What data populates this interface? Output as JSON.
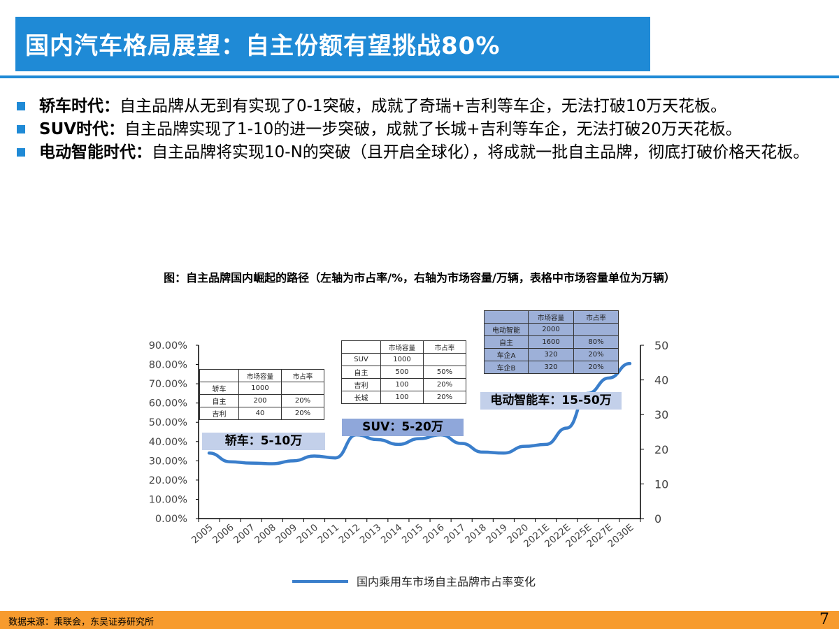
{
  "page": {
    "title": "国内汽车格局展望：自主份额有望挑战80%",
    "bullets": [
      {
        "lead": "轿车时代：",
        "text": "自主品牌从无到有实现了0-1突破，成就了奇瑞+吉利等车企，无法打破10万天花板。"
      },
      {
        "lead": "SUV时代：",
        "text": "自主品牌实现了1-10的进一步突破，成就了长城+吉利等车企，无法打破20万天花板。"
      },
      {
        "lead": "电动智能时代：",
        "text": "自主品牌将实现10-N的突破（且开启全球化），将成就一批自主品牌，彻底打破价格天花板。"
      }
    ],
    "figure_caption": "图：自主品牌国内崛起的路径（左轴为市占率/%，右轴为市场容量/万辆，表格中市场容量单位为万辆）",
    "footer_source": "数据来源：乘联会，东吴证券研究所",
    "page_number": "7",
    "colors": {
      "accent": "#1f8ad6",
      "line": "#3a7ecb",
      "footer": "#f79b2e"
    }
  },
  "tables": [
    {
      "header": [
        "",
        "市场容量",
        "市占率"
      ],
      "rows": [
        [
          "轿车",
          "1000",
          ""
        ],
        [
          "自主",
          "200",
          "20%"
        ],
        [
          "吉利",
          "40",
          "20%"
        ]
      ]
    },
    {
      "header": [
        "",
        "市场容量",
        "市占率"
      ],
      "rows": [
        [
          "SUV",
          "1000",
          ""
        ],
        [
          "自主",
          "500",
          "50%"
        ],
        [
          "吉利",
          "100",
          "20%"
        ],
        [
          "长城",
          "100",
          "20%"
        ]
      ]
    },
    {
      "header": [
        "",
        "市场容量",
        "市占率"
      ],
      "rows": [
        [
          "电动智能",
          "2000",
          ""
        ],
        [
          "自主",
          "1600",
          "80%"
        ],
        [
          "车企A",
          "320",
          "20%"
        ],
        [
          "车企B",
          "320",
          "20%"
        ]
      ]
    }
  ],
  "era_tags": [
    "轿车：5-10万",
    "SUV：5-20万",
    "电动智能车：15-50万"
  ],
  "chart_data": {
    "type": "line",
    "categories": [
      "2005",
      "2006",
      "2007",
      "2008",
      "2009",
      "2010",
      "2011",
      "2012",
      "2013",
      "2014",
      "2015",
      "2016",
      "2017",
      "2018",
      "2019",
      "2020",
      "2021E",
      "2022E",
      "2025E",
      "2027E",
      "2030E"
    ],
    "series": [
      {
        "name": "国内乘用车市场自主品牌市占率变化",
        "values": [
          34,
          29.5,
          28.8,
          28.5,
          30,
          32.5,
          31.5,
          43.5,
          41,
          38.5,
          41.5,
          43.5,
          39,
          34.5,
          34,
          37.5,
          38.5,
          47,
          65,
          73,
          80.5
        ]
      }
    ],
    "y_left": {
      "ticks": [
        "0.00%",
        "10.00%",
        "20.00%",
        "30.00%",
        "40.00%",
        "50.00%",
        "60.00%",
        "70.00%",
        "80.00%",
        "90.00%"
      ],
      "ylim": [
        0,
        90
      ]
    },
    "y_right": {
      "ticks": [
        "0",
        "10",
        "20",
        "30",
        "40",
        "50"
      ],
      "ylim": [
        0,
        50
      ]
    },
    "legend": "bottom"
  }
}
